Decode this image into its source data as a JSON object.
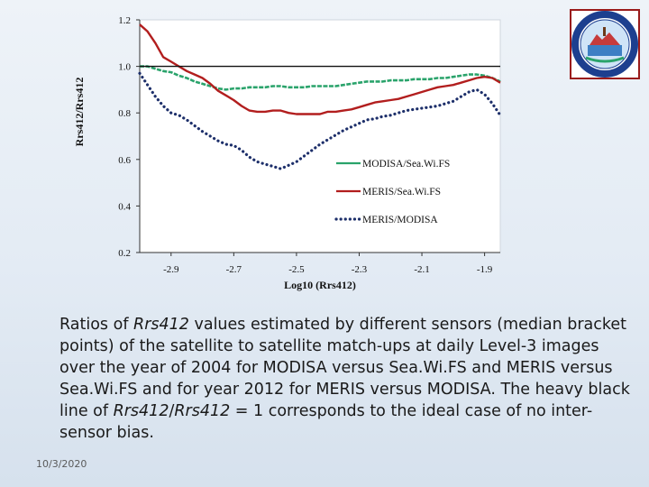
{
  "chart_data": {
    "type": "line",
    "xlabel": "Log10 (Rrs412)",
    "ylabel": "Rrs412/Rrs412",
    "xlim": [
      -3.0,
      -1.85
    ],
    "ylim": [
      0.2,
      1.2
    ],
    "x_ticks": [
      "-2.9",
      "-2.7",
      "-2.5",
      "-2.3",
      "-2.1",
      "-1.9"
    ],
    "y_ticks": [
      "0.2",
      "0.4",
      "0.6",
      "0.8",
      "1.0",
      "1.2"
    ],
    "grid": false,
    "legend_position": "inside-right",
    "series": [
      {
        "name": "MODISA/Sea.Wi.FS",
        "color": "#2aa36b",
        "style": "solid",
        "x": [
          -3.0,
          -2.975,
          -2.95,
          -2.925,
          -2.9,
          -2.875,
          -2.85,
          -2.825,
          -2.8,
          -2.775,
          -2.75,
          -2.725,
          -2.7,
          -2.675,
          -2.65,
          -2.625,
          -2.6,
          -2.575,
          -2.55,
          -2.525,
          -2.5,
          -2.475,
          -2.45,
          -2.425,
          -2.4,
          -2.375,
          -2.35,
          -2.325,
          -2.3,
          -2.275,
          -2.25,
          -2.225,
          -2.2,
          -2.175,
          -2.15,
          -2.125,
          -2.1,
          -2.075,
          -2.05,
          -2.025,
          -2.0,
          -1.975,
          -1.95,
          -1.925,
          -1.9,
          -1.875,
          -1.85
        ],
        "y": [
          1.0,
          1.0,
          0.99,
          0.98,
          0.975,
          0.96,
          0.95,
          0.935,
          0.925,
          0.915,
          0.905,
          0.9,
          0.905,
          0.905,
          0.91,
          0.91,
          0.91,
          0.915,
          0.915,
          0.91,
          0.91,
          0.91,
          0.915,
          0.915,
          0.915,
          0.915,
          0.92,
          0.925,
          0.93,
          0.935,
          0.935,
          0.935,
          0.94,
          0.94,
          0.94,
          0.945,
          0.945,
          0.945,
          0.95,
          0.95,
          0.955,
          0.96,
          0.965,
          0.965,
          0.96,
          0.95,
          0.935
        ]
      },
      {
        "name": "MERIS/Sea.Wi.FS",
        "color": "#b21e1e",
        "style": "solid",
        "x": [
          -3.0,
          -2.975,
          -2.95,
          -2.925,
          -2.9,
          -2.875,
          -2.85,
          -2.825,
          -2.8,
          -2.775,
          -2.75,
          -2.725,
          -2.7,
          -2.675,
          -2.65,
          -2.625,
          -2.6,
          -2.575,
          -2.55,
          -2.525,
          -2.5,
          -2.475,
          -2.45,
          -2.425,
          -2.4,
          -2.375,
          -2.35,
          -2.325,
          -2.3,
          -2.275,
          -2.25,
          -2.225,
          -2.2,
          -2.175,
          -2.15,
          -2.125,
          -2.1,
          -2.075,
          -2.05,
          -2.025,
          -2.0,
          -1.975,
          -1.95,
          -1.925,
          -1.9,
          -1.875,
          -1.85
        ],
        "y": [
          1.18,
          1.15,
          1.1,
          1.04,
          1.02,
          1.0,
          0.98,
          0.965,
          0.95,
          0.925,
          0.895,
          0.875,
          0.855,
          0.83,
          0.81,
          0.805,
          0.805,
          0.81,
          0.81,
          0.8,
          0.795,
          0.795,
          0.795,
          0.795,
          0.805,
          0.805,
          0.81,
          0.815,
          0.825,
          0.835,
          0.845,
          0.85,
          0.855,
          0.86,
          0.87,
          0.88,
          0.89,
          0.9,
          0.91,
          0.915,
          0.92,
          0.93,
          0.94,
          0.95,
          0.955,
          0.95,
          0.93
        ]
      },
      {
        "name": "MERIS/MODISA",
        "color": "#1d2f6a",
        "style": "dotted",
        "x": [
          -3.0,
          -2.975,
          -2.95,
          -2.925,
          -2.9,
          -2.875,
          -2.85,
          -2.825,
          -2.8,
          -2.775,
          -2.75,
          -2.725,
          -2.7,
          -2.675,
          -2.65,
          -2.625,
          -2.6,
          -2.575,
          -2.55,
          -2.525,
          -2.5,
          -2.475,
          -2.45,
          -2.425,
          -2.4,
          -2.375,
          -2.35,
          -2.325,
          -2.3,
          -2.275,
          -2.25,
          -2.225,
          -2.2,
          -2.175,
          -2.15,
          -2.125,
          -2.1,
          -2.075,
          -2.05,
          -2.025,
          -2.0,
          -1.975,
          -1.95,
          -1.925,
          -1.9,
          -1.875,
          -1.85
        ],
        "y": [
          0.97,
          0.92,
          0.87,
          0.83,
          0.8,
          0.79,
          0.77,
          0.745,
          0.72,
          0.7,
          0.68,
          0.665,
          0.66,
          0.64,
          0.61,
          0.59,
          0.58,
          0.57,
          0.56,
          0.575,
          0.59,
          0.615,
          0.64,
          0.665,
          0.685,
          0.705,
          0.725,
          0.74,
          0.755,
          0.77,
          0.775,
          0.785,
          0.79,
          0.8,
          0.81,
          0.815,
          0.82,
          0.825,
          0.83,
          0.84,
          0.85,
          0.87,
          0.89,
          0.9,
          0.88,
          0.84,
          0.79
        ]
      },
      {
        "name": "",
        "color": "#111111",
        "style": "heavy",
        "x": [
          -3.0,
          -1.85
        ],
        "y": [
          1.0,
          1.0
        ]
      }
    ]
  },
  "caption": {
    "p1": "Ratios of ",
    "i1": "Rrs412",
    "p2": " values estimated by different sensors (median bracket points) of the satellite to satellite match-ups at daily Level-3 images over the year of 2004 for MODISA versus Sea.Wi.FS and MERIS versus Sea.Wi.FS and for year 2012 for MERIS versus MODISA. The heavy black line of ",
    "i2": "Rrs412",
    "p3": "/",
    "i3": "Rrs412",
    "p4": " = 1 corresponds to the ideal case of no inter-sensor bias."
  },
  "footer": {
    "date": "10/3/2020"
  },
  "logo": {
    "icon": "seal-logo-icon",
    "ring_color": "#1d3f8f",
    "border_color": "#9a1b1b"
  }
}
